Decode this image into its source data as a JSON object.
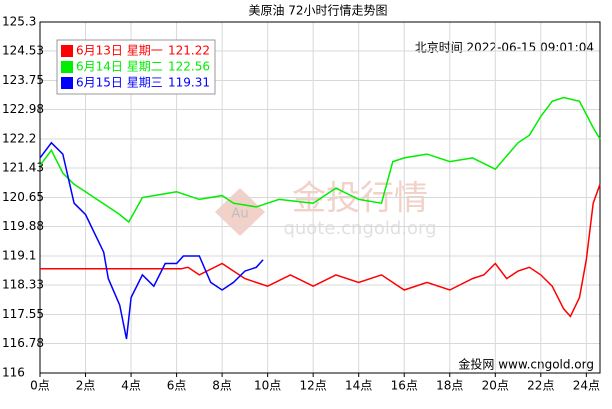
{
  "chart_data": {
    "type": "line",
    "title": "美原油 72小时行情走势图",
    "timestamp": "北京时间 2022-06-15 09:01:04",
    "watermark": "金投行情",
    "watermark_url": "quote.cngold.org",
    "watermark_logo": "Au",
    "footer": "金投网 www.cngold.org",
    "xlim": [
      0,
      24.6
    ],
    "ylim": [
      116,
      125.3
    ],
    "xticks": [
      {
        "value": 0,
        "label": "0点"
      },
      {
        "value": 2,
        "label": "2点"
      },
      {
        "value": 4,
        "label": "4点"
      },
      {
        "value": 6,
        "label": "6点"
      },
      {
        "value": 8,
        "label": "8点"
      },
      {
        "value": 10,
        "label": "10点"
      },
      {
        "value": 12,
        "label": "12点"
      },
      {
        "value": 14,
        "label": "14点"
      },
      {
        "value": 16,
        "label": "16点"
      },
      {
        "value": 18,
        "label": "18点"
      },
      {
        "value": 20,
        "label": "20点"
      },
      {
        "value": 22,
        "label": "22点"
      },
      {
        "value": 24,
        "label": "24点"
      }
    ],
    "yticks": [
      116,
      116.78,
      117.55,
      118.33,
      119.1,
      119.88,
      120.65,
      121.43,
      122.2,
      122.98,
      123.75,
      124.53,
      125.3
    ],
    "grid": true,
    "series": [
      {
        "name": "6月13日 星期一",
        "legend_value": 121.22,
        "color": "#ff0000",
        "x": [
          0,
          6.2,
          6.5,
          7,
          8,
          9,
          10,
          11,
          12,
          13,
          14,
          15,
          16,
          17,
          18,
          19,
          19.5,
          20,
          20.5,
          21,
          21.5,
          22,
          22.5,
          23,
          23.3,
          23.7,
          24,
          24.3,
          24.6
        ],
        "values": [
          118.76,
          118.76,
          118.8,
          118.6,
          118.9,
          118.5,
          118.3,
          118.6,
          118.3,
          118.6,
          118.4,
          118.6,
          118.2,
          118.4,
          118.2,
          118.5,
          118.6,
          118.9,
          118.5,
          118.7,
          118.8,
          118.6,
          118.3,
          117.7,
          117.5,
          118.0,
          119.0,
          120.5,
          121.0
        ]
      },
      {
        "name": "6月14日 星期二",
        "legend_value": 122.56,
        "color": "#00ee00",
        "x": [
          0,
          0.5,
          1,
          1.5,
          2,
          2.5,
          3,
          3.5,
          3.9,
          4.5,
          5,
          6,
          7,
          8,
          8.5,
          9.5,
          10.5,
          12,
          13,
          14,
          15,
          15.5,
          16,
          17,
          18,
          19,
          20,
          21,
          21.5,
          22,
          22.5,
          23,
          23.7,
          24.3,
          24.6
        ],
        "values": [
          121.5,
          121.9,
          121.3,
          121.0,
          120.8,
          120.6,
          120.4,
          120.2,
          120.0,
          120.65,
          120.7,
          120.8,
          120.6,
          120.7,
          120.5,
          120.4,
          120.6,
          120.5,
          120.9,
          120.6,
          120.5,
          121.6,
          121.7,
          121.8,
          121.6,
          121.7,
          121.4,
          122.1,
          122.3,
          122.8,
          123.2,
          123.3,
          123.2,
          122.5,
          122.2
        ]
      },
      {
        "name": "6月15日 星期三",
        "legend_value": 119.31,
        "color": "#0000ff",
        "x": [
          0,
          0.5,
          1,
          1.5,
          2,
          2.8,
          3,
          3.5,
          3.8,
          4,
          4.5,
          5,
          5.5,
          6,
          6.3,
          7,
          7.5,
          8,
          8.5,
          9,
          9.5,
          9.8
        ],
        "values": [
          121.7,
          122.1,
          121.8,
          120.5,
          120.2,
          119.2,
          118.5,
          117.8,
          116.9,
          118.0,
          118.6,
          118.3,
          118.9,
          118.9,
          119.1,
          119.1,
          118.4,
          118.2,
          118.4,
          118.7,
          118.8,
          119.0
        ]
      }
    ]
  }
}
